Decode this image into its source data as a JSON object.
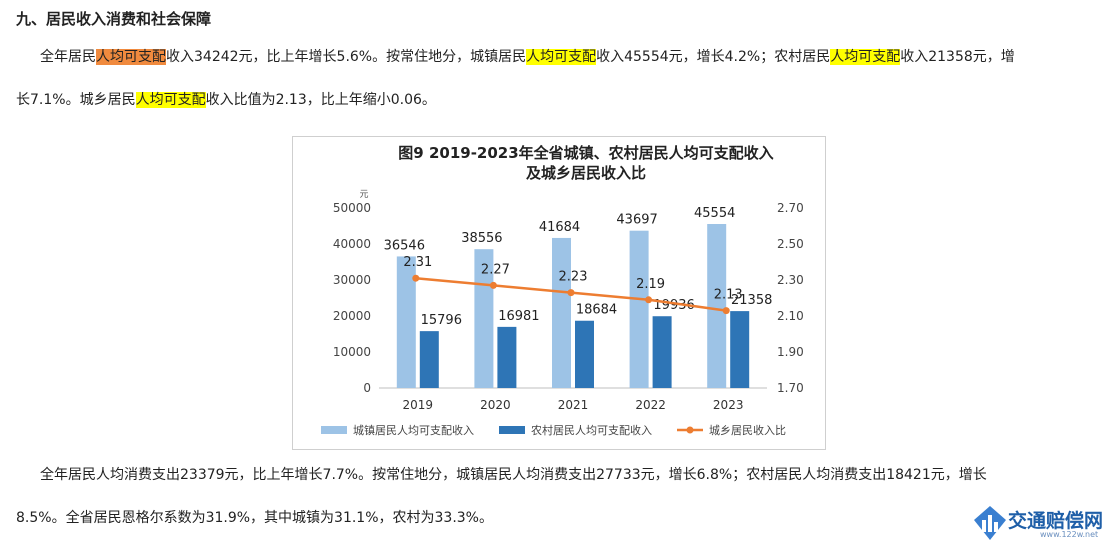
{
  "section_heading": "九、居民收入消费和社会保障",
  "income_para": {
    "line1": [
      {
        "t": "全年居民",
        "hl": ""
      },
      {
        "t": "人均可支配",
        "hl": "orange"
      },
      {
        "t": "收入34242元，比上年增长5.6%。按常住地分，城镇居民",
        "hl": ""
      },
      {
        "t": "人均可支配",
        "hl": "yellow"
      },
      {
        "t": "收入45554元，增长4.2%；农村居民",
        "hl": ""
      },
      {
        "t": "人均可支配",
        "hl": "yellow"
      },
      {
        "t": "收入21358元，增",
        "hl": ""
      }
    ],
    "line2": [
      {
        "t": "长7.1%。城乡居民",
        "hl": ""
      },
      {
        "t": "人均可支配",
        "hl": "yellow"
      },
      {
        "t": "收入比值为2.13，比上年缩小0.06。",
        "hl": ""
      }
    ]
  },
  "consumption_para": {
    "line1": "全年居民人均消费支出23379元，比上年增长7.7%。按常住地分，城镇居民人均消费支出27733元，增长6.8%；农村居民人均消费支出18421元，增长",
    "line2": "8.5%。全省居民恩格尔系数为31.9%，其中城镇为31.1%，农村为33.3%。"
  },
  "chart_data": {
    "type": "bar",
    "title_line1": "图9 2019-2023年全省城镇、农村居民人均可支配收入",
    "title_line2": "及城乡居民收入比",
    "y_unit": "元",
    "categories": [
      "2019",
      "2020",
      "2021",
      "2022",
      "2023"
    ],
    "series": [
      {
        "name": "城镇居民人均可支配收入",
        "kind": "bar",
        "axis": "left",
        "color": "#9dc3e6",
        "values": [
          36546,
          38556,
          41684,
          43697,
          45554
        ]
      },
      {
        "name": "农村居民人均可支配收入",
        "kind": "bar",
        "axis": "left",
        "color": "#2e75b6",
        "values": [
          15796,
          16981,
          18684,
          19936,
          21358
        ]
      },
      {
        "name": "城乡居民收入比",
        "kind": "line",
        "axis": "right",
        "color": "#ed7d31",
        "values": [
          2.31,
          2.27,
          2.23,
          2.19,
          2.13
        ]
      }
    ],
    "y_left": {
      "min": 0,
      "max": 50000,
      "ticks": [
        "0",
        "10000",
        "20000",
        "30000",
        "40000",
        "50000"
      ]
    },
    "y_right": {
      "min": 1.7,
      "max": 2.7,
      "ticks": [
        "1.70",
        "1.90",
        "2.10",
        "2.30",
        "2.50",
        "2.70"
      ]
    },
    "grid": false,
    "legend_position": "bottom"
  },
  "logo": {
    "name": "交通赔偿网",
    "sub": "www.122w.net"
  }
}
